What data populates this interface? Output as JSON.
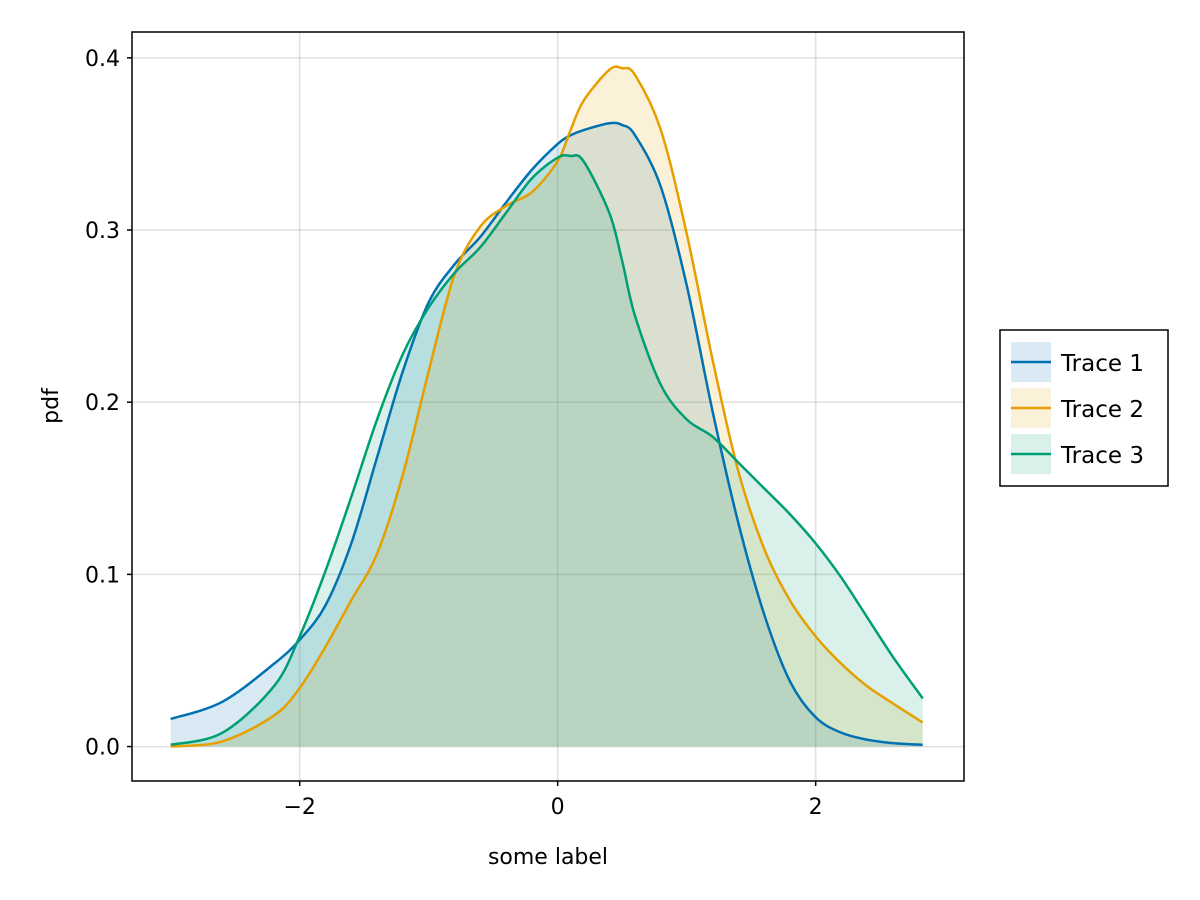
{
  "chart_data": {
    "type": "area",
    "title": "",
    "xlabel": "some label",
    "ylabel": "pdf",
    "xlim": [
      -3.3,
      3.15
    ],
    "ylim": [
      -0.02,
      0.415
    ],
    "xticks": [
      -2,
      0,
      2
    ],
    "xtick_labels": [
      "−2",
      "0",
      "2"
    ],
    "yticks": [
      0.0,
      0.1,
      0.2,
      0.3,
      0.4
    ],
    "ytick_labels": [
      "0.0",
      "0.1",
      "0.2",
      "0.3",
      "0.4"
    ],
    "grid": true,
    "legend_position": "right",
    "x": [
      -3.0,
      -2.6,
      -2.2,
      -2.0,
      -1.8,
      -1.6,
      -1.4,
      -1.2,
      -1.0,
      -0.8,
      -0.6,
      -0.4,
      -0.2,
      0.0,
      0.1,
      0.2,
      0.4,
      0.5,
      0.6,
      0.8,
      1.0,
      1.2,
      1.4,
      1.6,
      1.8,
      2.0,
      2.2,
      2.4,
      2.6,
      2.83
    ],
    "series": [
      {
        "name": "Trace 1",
        "color": "#0072b2",
        "values": [
          0.016,
          0.026,
          0.048,
          0.062,
          0.082,
          0.118,
          0.168,
          0.218,
          0.258,
          0.28,
          0.296,
          0.316,
          0.335,
          0.35,
          0.355,
          0.358,
          0.362,
          0.361,
          0.355,
          0.325,
          0.268,
          0.195,
          0.13,
          0.077,
          0.038,
          0.017,
          0.008,
          0.004,
          0.002,
          0.001
        ]
      },
      {
        "name": "Trace 2",
        "color": "#e69f00",
        "values": [
          0.0,
          0.003,
          0.018,
          0.034,
          0.058,
          0.085,
          0.112,
          0.158,
          0.218,
          0.274,
          0.302,
          0.314,
          0.322,
          0.34,
          0.358,
          0.375,
          0.393,
          0.394,
          0.39,
          0.358,
          0.298,
          0.225,
          0.16,
          0.115,
          0.085,
          0.064,
          0.048,
          0.035,
          0.025,
          0.014
        ]
      },
      {
        "name": "Trace 3",
        "color": "#009e73",
        "values": [
          0.001,
          0.008,
          0.035,
          0.064,
          0.102,
          0.145,
          0.19,
          0.228,
          0.255,
          0.275,
          0.29,
          0.31,
          0.33,
          0.342,
          0.343,
          0.34,
          0.31,
          0.282,
          0.25,
          0.21,
          0.19,
          0.18,
          0.165,
          0.15,
          0.135,
          0.118,
          0.098,
          0.075,
          0.052,
          0.028
        ]
      }
    ]
  }
}
